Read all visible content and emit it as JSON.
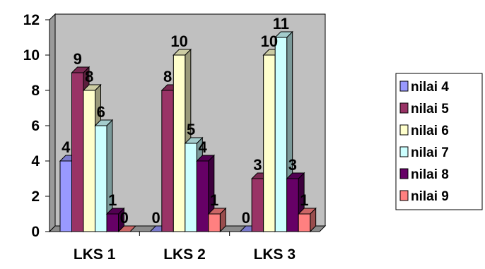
{
  "chart_data": {
    "type": "bar",
    "title": "",
    "xlabel": "",
    "ylabel": "",
    "categories": [
      "LKS 1",
      "LKS 2",
      "LKS 3"
    ],
    "ylim": [
      0,
      12
    ],
    "yticks": [
      0,
      2,
      4,
      6,
      8,
      10,
      12
    ],
    "grid": false,
    "legend_position": "right",
    "style": "3d-clustered-column",
    "series": [
      {
        "name": "nilai 4",
        "values": [
          4,
          0,
          0
        ],
        "data_labels": [
          "4",
          "0",
          "0"
        ],
        "color": "#9999FF"
      },
      {
        "name": "nilai 5",
        "values": [
          9,
          8,
          3
        ],
        "data_labels": [
          "9",
          "8",
          "3"
        ],
        "color": "#993366"
      },
      {
        "name": "nilai 6",
        "values": [
          8,
          10,
          10
        ],
        "data_labels": [
          "8",
          "10",
          "10"
        ],
        "color": "#FFFFCC"
      },
      {
        "name": "nilai 7",
        "values": [
          6,
          5,
          11
        ],
        "data_labels": [
          "6",
          "5",
          "11"
        ],
        "color": "#CCFFFF"
      },
      {
        "name": "nilai 8",
        "values": [
          1,
          4,
          3
        ],
        "data_labels": [
          "1",
          "4",
          "3"
        ],
        "color": "#660066"
      },
      {
        "name": "nilai 9",
        "values": [
          0,
          1,
          1
        ],
        "data_labels": [
          "0",
          "1",
          "1"
        ],
        "color": "#FF8080"
      }
    ],
    "wall_color": "#C0C0C0"
  }
}
